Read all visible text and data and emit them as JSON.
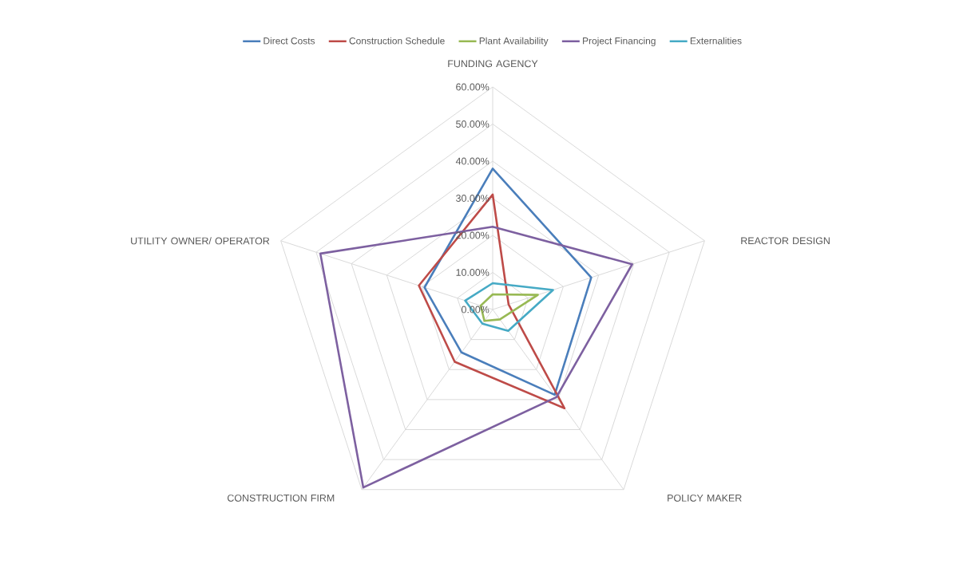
{
  "chart_data": {
    "type": "radar",
    "categories": [
      "FUNDING AGENCY",
      "REACTOR DESIGN",
      "POLICY MAKER",
      "CONSTRUCTION FIRM",
      "UTILITY OWNER/ OPERATOR"
    ],
    "series": [
      {
        "name": "Direct Costs",
        "color": "#4a7ebb",
        "values": [
          38.0,
          27.9,
          28.4,
          14.3,
          19.3
        ]
      },
      {
        "name": "Construction Schedule",
        "color": "#be4b48",
        "values": [
          31.0,
          4.5,
          32.9,
          17.4,
          20.9
        ]
      },
      {
        "name": "Plant Availability",
        "color": "#98b954",
        "values": [
          4.1,
          12.8,
          3.3,
          3.8,
          3.4
        ]
      },
      {
        "name": "Project Financing",
        "color": "#7d60a0",
        "values": [
          22.3,
          39.5,
          29.2,
          59.3,
          48.8
        ]
      },
      {
        "name": "Externalities",
        "color": "#46aac5",
        "values": [
          7.1,
          17.1,
          7.1,
          4.7,
          7.8
        ]
      }
    ],
    "ylim": [
      0,
      60
    ],
    "yticks": [
      {
        "value": 0,
        "label": "0.00%"
      },
      {
        "value": 10,
        "label": "10.00%"
      },
      {
        "value": 20,
        "label": "20.00%"
      },
      {
        "value": 30,
        "label": "30.00%"
      },
      {
        "value": 40,
        "label": "40.00%"
      },
      {
        "value": 50,
        "label": "50.00%"
      },
      {
        "value": 60,
        "label": "60.00%"
      }
    ],
    "grid": true,
    "legend": "top",
    "line_style": "solid"
  }
}
